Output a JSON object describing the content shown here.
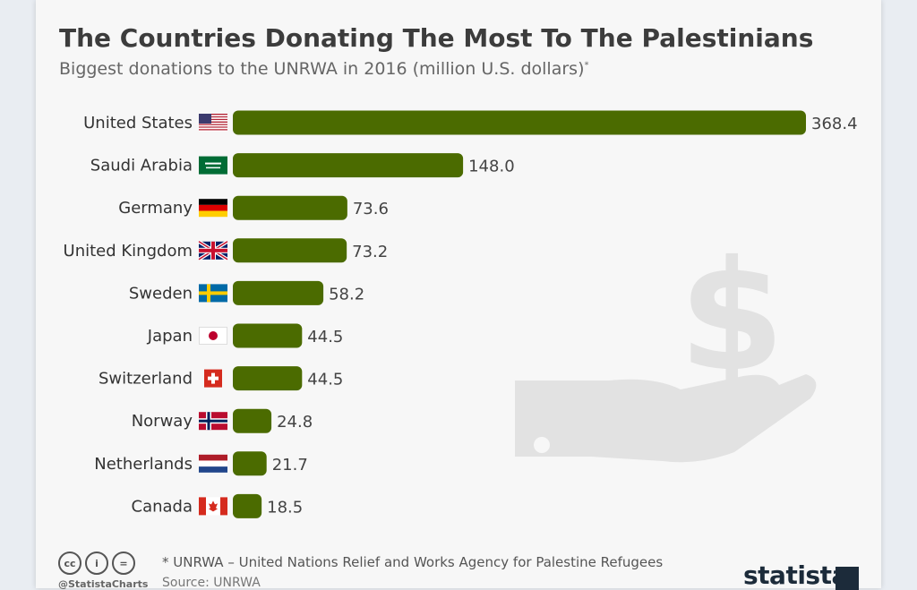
{
  "header": {
    "title": "The Countries Donating The Most To The Palestinians",
    "subtitle": "Biggest donations to the UNRWA in 2016 (million U.S. dollars)",
    "subtitle_mark": "*"
  },
  "colors": {
    "bar": "#4b6b00",
    "background": "#f7f7f7"
  },
  "chart_data": {
    "type": "bar",
    "orientation": "horizontal",
    "title": "The Countries Donating The Most To The Palestinians",
    "subtitle": "Biggest donations to the UNRWA in 2016 (million U.S. dollars)",
    "categories": [
      "United States",
      "Saudi Arabia",
      "Germany",
      "United Kingdom",
      "Sweden",
      "Japan",
      "Switzerland",
      "Norway",
      "Netherlands",
      "Canada"
    ],
    "values": [
      368.4,
      148.0,
      73.6,
      73.2,
      58.2,
      44.5,
      44.5,
      24.8,
      21.7,
      18.5
    ],
    "value_labels": [
      "368.4",
      "148.0",
      "73.6",
      "73.2",
      "58.2",
      "44.5",
      "44.5",
      "24.8",
      "21.7",
      "18.5"
    ],
    "flags": [
      "us-flag-icon",
      "saudi-arabia-flag-icon",
      "germany-flag-icon",
      "uk-flag-icon",
      "sweden-flag-icon",
      "japan-flag-icon",
      "switzerland-flag-icon",
      "norway-flag-icon",
      "netherlands-flag-icon",
      "canada-flag-icon"
    ],
    "xlim": [
      0,
      368.4
    ],
    "grid": false,
    "legend": "none"
  },
  "footer": {
    "note": "* UNRWA – United Nations Relief and Works Agency for Palestine Refugees",
    "source": "Source: UNRWA",
    "handle": "@StatistaCharts",
    "brand": "statista",
    "license_icons": [
      "cc-icon",
      "attribution-icon",
      "no-derivatives-icon"
    ]
  },
  "decoration": {
    "background_icon": "money-hand-icon"
  }
}
